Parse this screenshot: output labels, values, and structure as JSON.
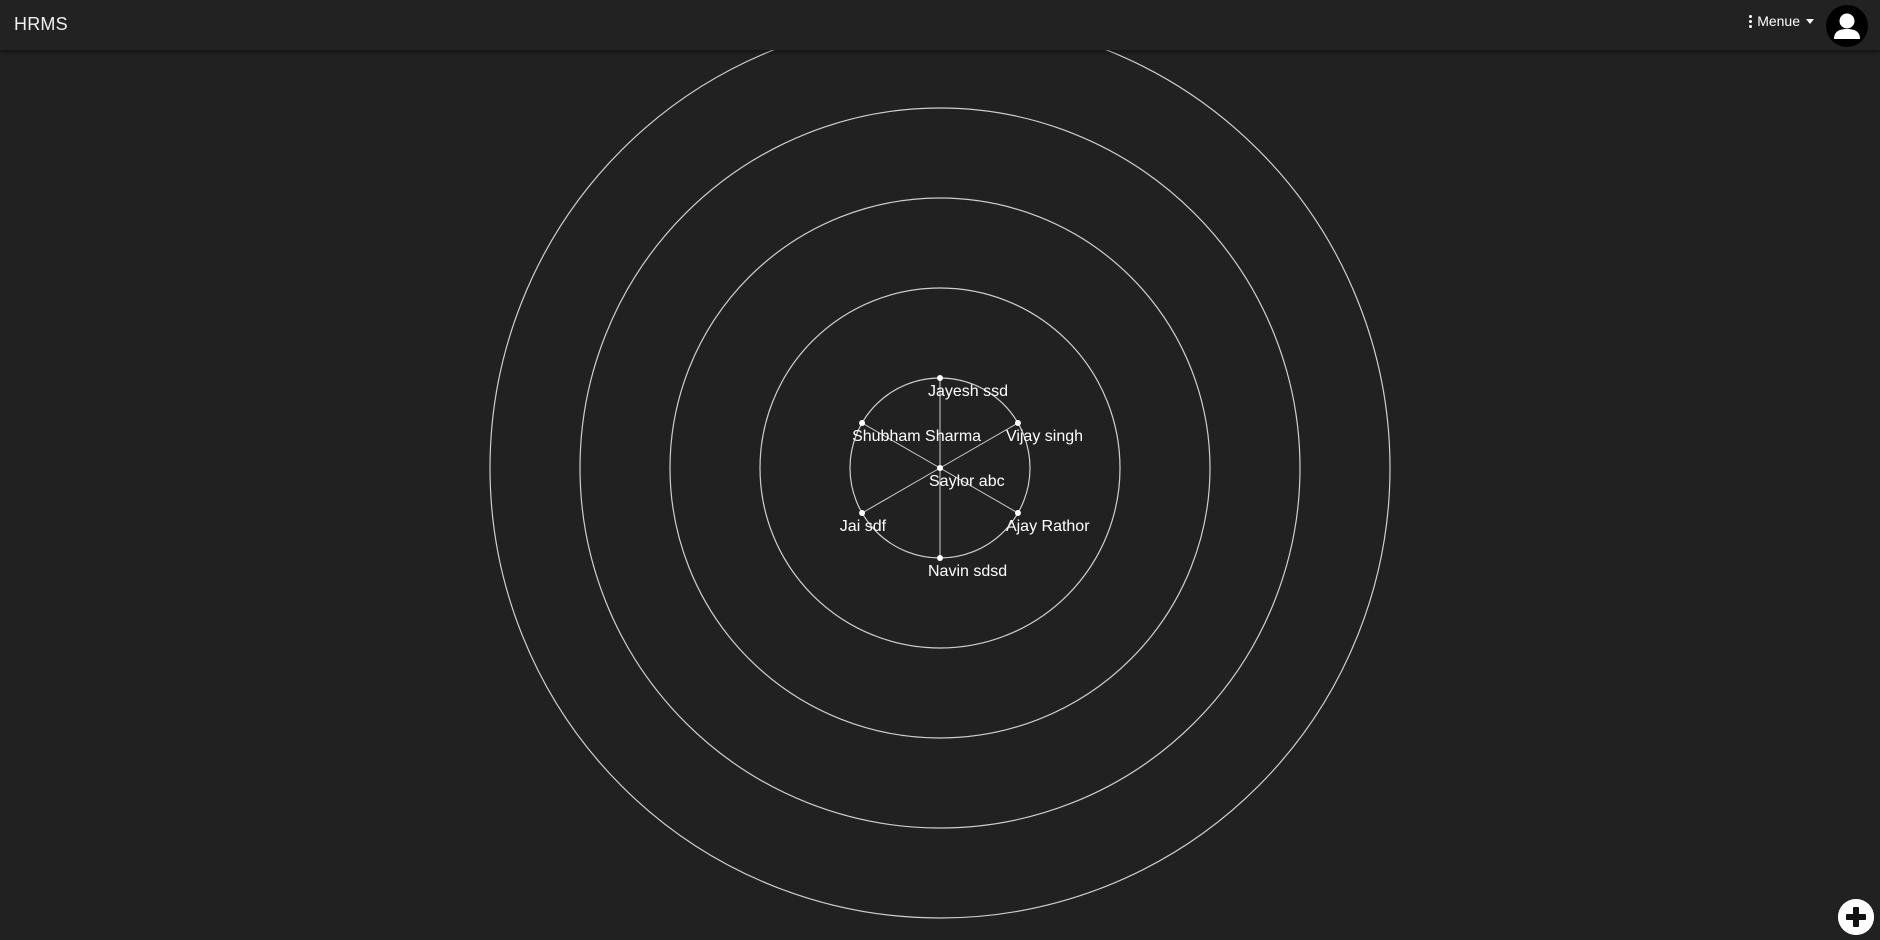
{
  "header": {
    "title": "HRMS",
    "menu_label": "Menue",
    "menu_icon": "kebab-vertical-icon",
    "avatar_icon": "user-avatar-icon"
  },
  "org_chart": {
    "center": {
      "name": "Saylor abc"
    },
    "ring_count": 5,
    "members": [
      {
        "name": "Jayesh ssd"
      },
      {
        "name": "Vijay singh"
      },
      {
        "name": "Ajay Rathor"
      },
      {
        "name": "Navin sdsd"
      },
      {
        "name": "Jai sdf"
      },
      {
        "name": "Shubham Sharma"
      }
    ]
  },
  "fab": {
    "icon": "plus-circle-icon"
  },
  "colors": {
    "background": "#212121",
    "header": "#222222",
    "rings": "#cfcfcf",
    "text": "#ffffff"
  }
}
